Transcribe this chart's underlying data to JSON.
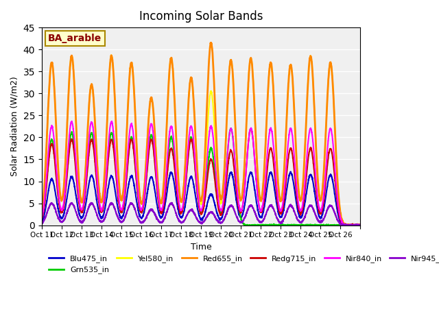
{
  "title": "Incoming Solar Bands",
  "xlabel": "Time",
  "ylabel": "Solar Radiation (W/m2)",
  "ylim": [
    0,
    45
  ],
  "annotation": "BA_arable",
  "background_color": "#f0f0f0",
  "series": {
    "Blu475_in": {
      "color": "#0000cc",
      "lw": 1.5
    },
    "Grn535_in": {
      "color": "#00cc00",
      "lw": 1.5
    },
    "Yel580_in": {
      "color": "#ffff00",
      "lw": 1.5
    },
    "Red655_in": {
      "color": "#ff8800",
      "lw": 2.0
    },
    "Redg715_in": {
      "color": "#cc0000",
      "lw": 1.5
    },
    "Nir840_in": {
      "color": "#ff00ff",
      "lw": 1.5
    },
    "Nir945_in": {
      "color": "#8800cc",
      "lw": 1.5
    }
  },
  "xtick_labels": [
    "Oct 11",
    "Oct 12",
    "Oct 13",
    "Oct 14",
    "Oct 15",
    "Oct 16",
    "Oct 17",
    "Oct 18",
    "Oct 19",
    "Oct 20",
    "Oct 21",
    "Oct 22",
    "Oct 23",
    "Oct 24",
    "Oct 25",
    "Oct 26"
  ],
  "days": 16,
  "peaks": {
    "Blu475_in": [
      10.5,
      11.0,
      11.3,
      11.2,
      11.2,
      11.0,
      12.0,
      11.0,
      7.0,
      12.0,
      12.0,
      12.0,
      12.0,
      11.5,
      11.5,
      0
    ],
    "Grn535_in": [
      19.5,
      21.0,
      21.0,
      21.0,
      20.0,
      20.5,
      20.0,
      20.0,
      17.5,
      22.0,
      0,
      0,
      0,
      0,
      0,
      0
    ],
    "Yel580_in": [
      37.0,
      38.5,
      32.0,
      38.5,
      37.0,
      29.0,
      38.0,
      33.5,
      30.5,
      37.5,
      38.0,
      37.0,
      36.5,
      38.5,
      37.0,
      0
    ],
    "Red655_in": [
      37.0,
      38.5,
      32.0,
      38.5,
      37.0,
      29.0,
      38.0,
      33.5,
      41.5,
      37.5,
      38.0,
      37.0,
      36.5,
      38.5,
      37.0,
      0
    ],
    "Redg715_in": [
      18.5,
      19.5,
      19.5,
      19.5,
      19.5,
      19.5,
      17.5,
      19.5,
      15.0,
      17.0,
      22.0,
      17.5,
      17.5,
      17.5,
      17.5,
      0
    ],
    "Nir840_in": [
      22.5,
      23.5,
      23.5,
      23.5,
      23.0,
      23.0,
      22.5,
      22.5,
      22.5,
      22.0,
      22.0,
      22.0,
      22.0,
      22.0,
      22.0,
      0
    ],
    "Nir945_in": [
      5.0,
      5.0,
      5.0,
      5.0,
      5.0,
      3.5,
      5.0,
      3.5,
      3.0,
      4.5,
      4.5,
      4.5,
      4.5,
      4.5,
      4.5,
      0
    ]
  }
}
